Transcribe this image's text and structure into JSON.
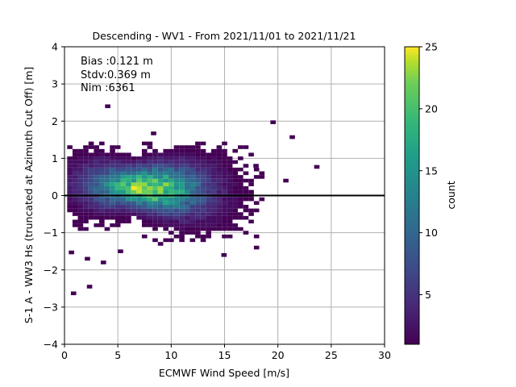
{
  "chart_data": {
    "type": "heatmap",
    "title": "Descending - WV1 - From 2021/11/01 to 2021/11/21",
    "xlabel": "ECMWF Wind Speed [m/s]",
    "ylabel": "S-1 A - WW3 Hs (truncated at Azimuth Cut Off) [m]",
    "xlim": [
      0,
      30
    ],
    "ylim": [
      -4,
      4
    ],
    "xticks": [
      "0",
      "5",
      "10",
      "15",
      "20",
      "25",
      "30"
    ],
    "yticks": [
      "−4",
      "−3",
      "−2",
      "−1",
      "0",
      "1",
      "2",
      "3",
      "4"
    ],
    "grid": true,
    "reference_line_y": 0,
    "annotation": {
      "bias": "Bias :0.121 m",
      "stdv": "Stdv:0.369 m",
      "nim": "Nim :6361"
    },
    "colorbar": {
      "label": "count",
      "colormap": "viridis",
      "min": 1,
      "max": 25,
      "ticks": [
        "5",
        "10",
        "15",
        "20",
        "25"
      ]
    },
    "density_peak": {
      "x": 7.5,
      "y": 0.15,
      "count": 23
    },
    "outliers": [
      {
        "x": 3.8,
        "y": 2.35
      },
      {
        "x": 8.1,
        "y": 1.62
      },
      {
        "x": 19.3,
        "y": 1.92
      },
      {
        "x": 21.1,
        "y": 1.52
      },
      {
        "x": 23.4,
        "y": 0.72
      },
      {
        "x": 17.7,
        "y": 0.75
      },
      {
        "x": 20.5,
        "y": 0.35
      },
      {
        "x": 0.6,
        "y": -2.68
      },
      {
        "x": 2.1,
        "y": -2.5
      },
      {
        "x": 3.4,
        "y": -1.85
      },
      {
        "x": 5.0,
        "y": -1.55
      },
      {
        "x": 14.7,
        "y": -1.65
      },
      {
        "x": 1.9,
        "y": -1.75
      },
      {
        "x": 0.4,
        "y": -1.58
      }
    ]
  },
  "colors": {
    "reference_line": "#000000",
    "grid": "#b0b0b0"
  }
}
